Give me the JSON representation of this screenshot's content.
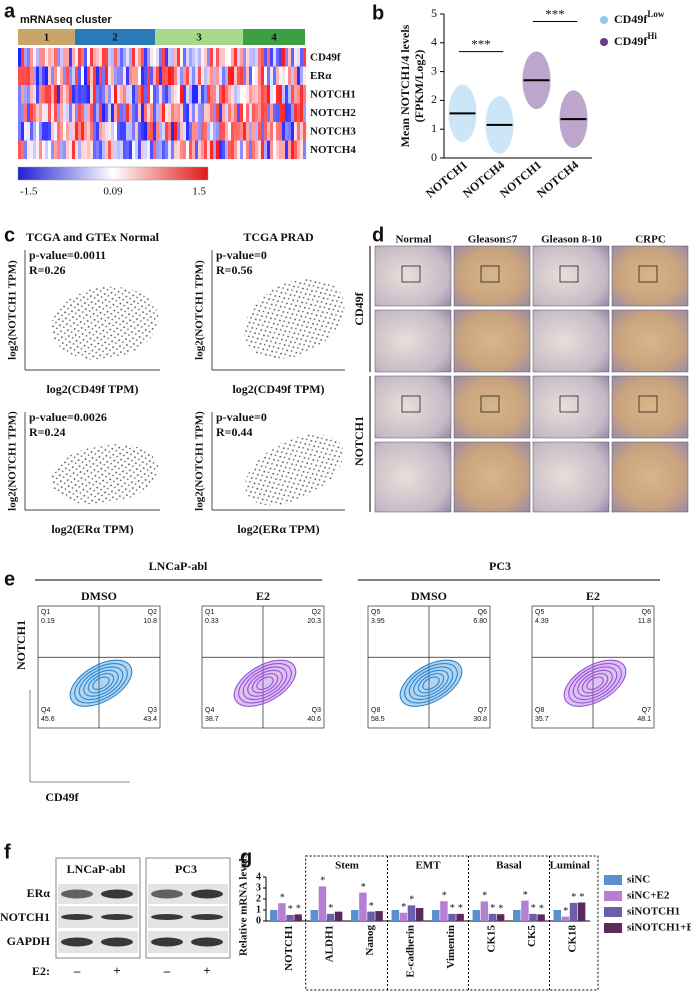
{
  "panel_labels": [
    "a",
    "b",
    "c",
    "d",
    "e",
    "f",
    "g"
  ],
  "panel_a": {
    "title": "mRNAseq cluster",
    "clusters": [
      "1",
      "2",
      "3",
      "4"
    ],
    "genes": [
      "CD49f",
      "ERα",
      "NOTCH1",
      "NOTCH2",
      "NOTCH3",
      "NOTCH4"
    ],
    "colorbar_labels": [
      "-1.5",
      "0.09",
      "1.5"
    ]
  },
  "panel_c": {
    "plots": [
      {
        "title": "TCGA and GTEx Normal",
        "p_value": "p-value=0.0011",
        "r": "R=0.26",
        "x_label": "log2(CD49f TPM)",
        "y_label": "log2(NOTCH1 TPM)"
      },
      {
        "title": "TCGA PRAD",
        "p_value": "p-value=0",
        "r": "R=0.56",
        "x_label": "log2(CD49f TPM)",
        "y_label": "log2(NOTCH1 TPM)"
      },
      {
        "p_value": "p-value=0.0026",
        "r": "R=0.24",
        "x_label": "log2(ERα TPM)",
        "y_label": "log2(NOTCH1 TPM)"
      },
      {
        "p_value": "p-value=0",
        "r": "R=0.44",
        "x_label": "log2(ERα TPM)",
        "y_label": "log2(NOTCH1 TPM)"
      }
    ]
  },
  "panel_d": {
    "columns": [
      "Normal",
      "Gleason≤7",
      "Gleason 8-10",
      "CRPC"
    ],
    "rows": [
      "CD49f",
      "NOTCH1"
    ]
  },
  "panel_e": {
    "cell_lines": [
      "LNCaP-abl",
      "PC3"
    ],
    "y_label": "NOTCH1",
    "x_label": "CD49f",
    "plots": [
      {
        "treatment": "DMSO",
        "color": "#2a86d0",
        "quadrants": [
          [
            "Q1",
            "0.19"
          ],
          [
            "Q2",
            "10.8"
          ],
          [
            "Q4",
            "45.6"
          ],
          [
            "Q3",
            "43.4"
          ]
        ]
      },
      {
        "treatment": "E2",
        "color": "#9b4fd6",
        "quadrants": [
          [
            "Q1",
            "0.33"
          ],
          [
            "Q2",
            "20.3"
          ],
          [
            "Q4",
            "38.7"
          ],
          [
            "Q3",
            "40.6"
          ]
        ]
      },
      {
        "treatment": "DMSO",
        "color": "#2a86d0",
        "quadrants": [
          [
            "Q5",
            "3.95"
          ],
          [
            "Q6",
            "6.80"
          ],
          [
            "Q8",
            "58.5"
          ],
          [
            "Q7",
            "30.8"
          ]
        ]
      },
      {
        "treatment": "E2",
        "color": "#9b4fd6",
        "quadrants": [
          [
            "Q5",
            "4.39"
          ],
          [
            "Q6",
            "11.8"
          ],
          [
            "Q8",
            "35.7"
          ],
          [
            "Q7",
            "48.1"
          ]
        ]
      }
    ]
  },
  "panel_f": {
    "cell_lines": [
      "LNCaP-abl",
      "PC3"
    ],
    "proteins": [
      "ERα",
      "NOTCH1",
      "GAPDH"
    ],
    "treatment_label": "E2:",
    "treatment_signs": [
      "–",
      "+",
      "–",
      "+"
    ]
  },
  "chart_data": [
    {
      "type": "dot",
      "y_label": "Mean NOTCH1/4 levels",
      "y_label_2": "(FPKM/Log2)",
      "categories": [
        "NOTCH1",
        "NOTCH4",
        "NOTCH1",
        "NOTCH4"
      ],
      "series": [
        {
          "name": "CD49f",
          "superscript": "Low",
          "color": "#8ec8ee",
          "values": [
            1.55,
            1.15,
            null,
            null
          ]
        },
        {
          "name": "CD49f",
          "superscript": "Hi",
          "color": "#6b3a8c",
          "values": [
            null,
            null,
            2.7,
            1.35
          ]
        }
      ],
      "annotations": [
        "***",
        "***"
      ],
      "ylim": [
        0,
        5
      ],
      "yticks": [
        0,
        1,
        2,
        3,
        4,
        5
      ]
    },
    {
      "type": "bar",
      "y_label": "Relative mRNA levels",
      "categories": [
        "NOTCH1",
        "ALDH1",
        "Nanog",
        "E-cadherin",
        "Vimentin",
        "CK15",
        "CK5",
        "CK18"
      ],
      "groups": [
        "Stem",
        "EMT",
        "Basal",
        "Luminal"
      ],
      "series": [
        {
          "name": "siNC",
          "color": "#5b8fd0",
          "values": [
            1,
            1,
            1,
            1,
            1,
            1,
            1,
            1
          ],
          "significance": [
            null,
            null,
            null,
            null,
            null,
            null,
            null,
            null
          ]
        },
        {
          "name": "siNC+E2",
          "color": "#b57fd4",
          "values": [
            1.62,
            3.15,
            2.58,
            0.75,
            1.8,
            1.78,
            1.85,
            0.4
          ],
          "significance": [
            "*",
            "*",
            "*",
            "*",
            "*",
            "*",
            "*",
            "*"
          ]
        },
        {
          "name": "siNOTCH1",
          "color": "#6a5fa8",
          "values": [
            0.55,
            0.65,
            0.85,
            1.42,
            0.65,
            0.65,
            0.65,
            1.65
          ],
          "significance": [
            "*",
            "*",
            "*",
            "*",
            "*",
            "*",
            "*",
            "*"
          ]
        },
        {
          "name": "siNOTCH1+E2",
          "color": "#5a2a5a",
          "values": [
            0.6,
            0.85,
            0.9,
            1.18,
            0.65,
            0.62,
            0.6,
            1.68
          ],
          "significance": [
            "*",
            null,
            null,
            null,
            "*",
            "*",
            "*",
            "*"
          ]
        }
      ],
      "ylim": [
        0,
        4
      ],
      "yticks": [
        0,
        1,
        2,
        3,
        4
      ]
    }
  ]
}
